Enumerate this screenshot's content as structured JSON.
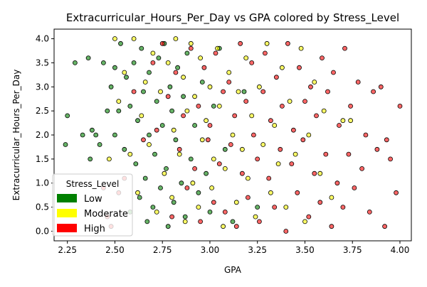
{
  "chart_data": {
    "type": "scatter",
    "title": "Extracurricular_Hours_Per_Day vs GPA colored by Stress_Level",
    "xlabel": "GPA",
    "ylabel": "Extracurricular_Hours_Per_Day",
    "xlim": [
      2.18,
      4.06
    ],
    "ylim": [
      -0.2,
      4.2
    ],
    "x_ticks": [
      "2.25",
      "2.50",
      "2.75",
      "3.00",
      "3.25",
      "3.50",
      "3.75",
      "4.00"
    ],
    "y_ticks": [
      "0.0",
      "0.5",
      "1.0",
      "1.5",
      "2.0",
      "2.5",
      "3.0",
      "3.5",
      "4.0"
    ],
    "grid": false,
    "legend": {
      "title": "Stress_Level",
      "placement": "lower-left",
      "entries": [
        {
          "label": "Low",
          "color": "#008000"
        },
        {
          "label": "Moderate",
          "color": "#ffff00"
        },
        {
          "label": "High",
          "color": "#ff0000"
        }
      ]
    },
    "series": [
      {
        "name": "Low",
        "color": "#008000",
        "points": [
          [
            2.24,
            1.8
          ],
          [
            2.25,
            2.4
          ],
          [
            2.29,
            3.5
          ],
          [
            2.33,
            2.0
          ],
          [
            2.36,
            3.6
          ],
          [
            2.37,
            1.5
          ],
          [
            2.38,
            2.1
          ],
          [
            2.4,
            2.0
          ],
          [
            2.42,
            1.8
          ],
          [
            2.44,
            3.5
          ],
          [
            2.46,
            2.5
          ],
          [
            2.48,
            3.0
          ],
          [
            2.5,
            3.4
          ],
          [
            2.5,
            2.0
          ],
          [
            2.52,
            2.5
          ],
          [
            2.53,
            3.9
          ],
          [
            2.55,
            1.7
          ],
          [
            2.56,
            3.2
          ],
          [
            2.58,
            2.6
          ],
          [
            2.58,
            0.4
          ],
          [
            2.6,
            3.5
          ],
          [
            2.61,
            1.4
          ],
          [
            2.62,
            2.3
          ],
          [
            2.63,
            0.7
          ],
          [
            2.64,
            3.8
          ],
          [
            2.65,
            2.9
          ],
          [
            2.66,
            1.1
          ],
          [
            2.67,
            0.2
          ],
          [
            2.68,
            3.3
          ],
          [
            2.68,
            2.0
          ],
          [
            2.7,
            0.5
          ],
          [
            2.71,
            1.6
          ],
          [
            2.72,
            2.7
          ],
          [
            2.73,
            3.6
          ],
          [
            2.74,
            0.9
          ],
          [
            2.75,
            2.2
          ],
          [
            2.76,
            3.9
          ],
          [
            2.77,
            1.3
          ],
          [
            2.78,
            0.1
          ],
          [
            2.79,
            3.0
          ],
          [
            2.8,
            2.5
          ],
          [
            2.81,
            0.6
          ],
          [
            2.82,
            1.9
          ],
          [
            2.83,
            3.4
          ],
          [
            2.85,
            1.0
          ],
          [
            2.86,
            2.8
          ],
          [
            2.87,
            0.3
          ],
          [
            2.88,
            3.7
          ],
          [
            2.9,
            1.5
          ],
          [
            2.92,
            2.2
          ],
          [
            2.94,
            0.8
          ],
          [
            2.96,
            3.1
          ],
          [
            2.98,
            1.2
          ],
          [
            3.0,
            0.4
          ],
          [
            3.02,
            2.6
          ],
          [
            3.05,
            3.8
          ],
          [
            3.08,
            1.7
          ],
          [
            3.12,
            0.2
          ],
          [
            3.18,
            2.9
          ],
          [
            3.25,
            0.5
          ]
        ]
      },
      {
        "name": "Moderate",
        "color": "#ffff00",
        "points": [
          [
            2.47,
            1.5
          ],
          [
            2.5,
            4.0
          ],
          [
            2.52,
            2.7
          ],
          [
            2.55,
            3.3
          ],
          [
            2.58,
            1.6
          ],
          [
            2.6,
            4.0
          ],
          [
            2.62,
            0.8
          ],
          [
            2.64,
            2.4
          ],
          [
            2.66,
            3.1
          ],
          [
            2.68,
            1.8
          ],
          [
            2.7,
            3.7
          ],
          [
            2.72,
            0.4
          ],
          [
            2.74,
            2.9
          ],
          [
            2.76,
            1.2
          ],
          [
            2.78,
            3.5
          ],
          [
            2.8,
            0.7
          ],
          [
            2.81,
            2.1
          ],
          [
            2.82,
            4.0
          ],
          [
            2.84,
            1.6
          ],
          [
            2.86,
            3.2
          ],
          [
            2.87,
            0.2
          ],
          [
            2.88,
            2.5
          ],
          [
            2.9,
            3.9
          ],
          [
            2.91,
            1.0
          ],
          [
            2.92,
            2.8
          ],
          [
            2.94,
            0.5
          ],
          [
            2.95,
            3.6
          ],
          [
            2.96,
            1.9
          ],
          [
            2.98,
            2.3
          ],
          [
            3.0,
            3.0
          ],
          [
            3.01,
            0.9
          ],
          [
            3.02,
            1.5
          ],
          [
            3.04,
            3.8
          ],
          [
            3.05,
            2.6
          ],
          [
            3.07,
            0.1
          ],
          [
            3.08,
            1.3
          ],
          [
            3.1,
            3.3
          ],
          [
            3.12,
            2.0
          ],
          [
            3.14,
            0.6
          ],
          [
            3.15,
            2.9
          ],
          [
            3.17,
            1.7
          ],
          [
            3.19,
            3.6
          ],
          [
            3.2,
            1.1
          ],
          [
            3.22,
            2.4
          ],
          [
            3.24,
            0.3
          ],
          [
            3.26,
            3.0
          ],
          [
            3.28,
            1.8
          ],
          [
            3.3,
            3.9
          ],
          [
            3.32,
            0.8
          ],
          [
            3.34,
            2.2
          ],
          [
            3.36,
            1.4
          ],
          [
            3.38,
            3.4
          ],
          [
            3.4,
            0.5
          ],
          [
            3.42,
            2.7
          ],
          [
            3.45,
            1.6
          ],
          [
            3.48,
            3.8
          ],
          [
            3.5,
            0.2
          ],
          [
            3.52,
            2.0
          ],
          [
            3.55,
            3.1
          ],
          [
            3.58,
            1.2
          ],
          [
            3.6,
            2.5
          ],
          [
            3.64,
            0.7
          ],
          [
            3.7,
            2.3
          ],
          [
            3.74,
            2.3
          ]
        ]
      },
      {
        "name": "High",
        "color": "#ff0000",
        "points": [
          [
            2.44,
            0.9
          ],
          [
            2.46,
            0.3
          ],
          [
            2.48,
            0.1
          ],
          [
            2.52,
            0.8
          ],
          [
            2.55,
            1.1
          ],
          [
            2.6,
            2.9
          ],
          [
            2.65,
            1.9
          ],
          [
            2.7,
            3.5
          ],
          [
            2.72,
            2.1
          ],
          [
            2.75,
            3.9
          ],
          [
            2.78,
            2.8
          ],
          [
            2.8,
            0.3
          ],
          [
            2.82,
            3.3
          ],
          [
            2.84,
            1.7
          ],
          [
            2.86,
            2.4
          ],
          [
            2.88,
            0.9
          ],
          [
            2.9,
            3.8
          ],
          [
            2.92,
            1.3
          ],
          [
            2.94,
            2.6
          ],
          [
            2.95,
            0.2
          ],
          [
            2.97,
            3.4
          ],
          [
            2.99,
            1.9
          ],
          [
            3.0,
            2.2
          ],
          [
            3.02,
            0.6
          ],
          [
            3.03,
            3.7
          ],
          [
            3.05,
            1.4
          ],
          [
            3.07,
            2.9
          ],
          [
            3.08,
            0.4
          ],
          [
            3.1,
            3.1
          ],
          [
            3.11,
            1.8
          ],
          [
            3.13,
            2.4
          ],
          [
            3.14,
            0.1
          ],
          [
            3.16,
            3.9
          ],
          [
            3.17,
            1.2
          ],
          [
            3.19,
            2.7
          ],
          [
            3.2,
            0.7
          ],
          [
            3.22,
            3.5
          ],
          [
            3.23,
            2.0
          ],
          [
            3.25,
            1.5
          ],
          [
            3.26,
            0.2
          ],
          [
            3.28,
            2.9
          ],
          [
            3.29,
            3.7
          ],
          [
            3.31,
            1.1
          ],
          [
            3.32,
            2.3
          ],
          [
            3.34,
            0.5
          ],
          [
            3.35,
            3.2
          ],
          [
            3.37,
            1.7
          ],
          [
            3.38,
            2.6
          ],
          [
            3.4,
            0.0
          ],
          [
            3.41,
            3.9
          ],
          [
            3.43,
            1.4
          ],
          [
            3.44,
            2.1
          ],
          [
            3.46,
            0.8
          ],
          [
            3.47,
            3.4
          ],
          [
            3.49,
            1.9
          ],
          [
            3.5,
            2.7
          ],
          [
            3.52,
            0.3
          ],
          [
            3.53,
            3.0
          ],
          [
            3.55,
            1.2
          ],
          [
            3.56,
            2.4
          ],
          [
            3.58,
            0.6
          ],
          [
            3.59,
            3.6
          ],
          [
            3.61,
            1.6
          ],
          [
            3.62,
            2.9
          ],
          [
            3.64,
            0.1
          ],
          [
            3.65,
            3.3
          ],
          [
            3.67,
            1.0
          ],
          [
            3.68,
            2.2
          ],
          [
            3.7,
            0.5
          ],
          [
            3.71,
            3.8
          ],
          [
            3.73,
            1.6
          ],
          [
            3.74,
            2.6
          ],
          [
            3.76,
            0.9
          ],
          [
            3.78,
            3.1
          ],
          [
            3.8,
            1.3
          ],
          [
            3.82,
            2.0
          ],
          [
            3.84,
            0.4
          ],
          [
            3.86,
            2.9
          ],
          [
            3.88,
            1.7
          ],
          [
            3.9,
            3.0
          ],
          [
            3.92,
            0.1
          ],
          [
            3.93,
            1.9
          ],
          [
            3.95,
            1.5
          ],
          [
            3.98,
            0.8
          ],
          [
            4.0,
            2.6
          ]
        ]
      }
    ]
  }
}
